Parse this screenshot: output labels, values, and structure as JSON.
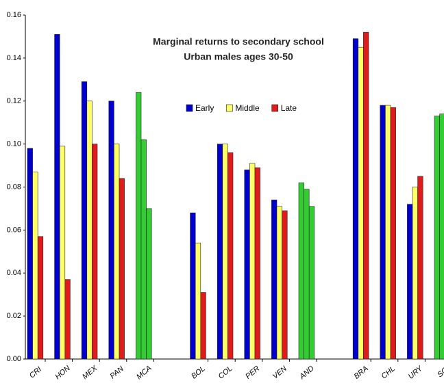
{
  "chart_data": {
    "type": "bar",
    "title": "Marginal returns to secondary school",
    "subtitle": "Urban males ages 30-50",
    "categories": [
      "CRI",
      "HON",
      "MEX",
      "PAN",
      "MCA",
      null,
      "BOL",
      "COL",
      "PER",
      "VEN",
      "AND",
      null,
      "BRA",
      "CHL",
      "URY",
      "SC"
    ],
    "series": [
      {
        "name": "Early",
        "color": "#0000cc",
        "values": [
          0.098,
          0.151,
          0.129,
          0.12,
          0.124,
          null,
          0.068,
          0.1,
          0.088,
          0.074,
          0.082,
          null,
          0.149,
          0.118,
          0.072,
          0.113
        ]
      },
      {
        "name": "Middle",
        "color": "#ffff66",
        "values": [
          0.087,
          0.099,
          0.12,
          0.1,
          0.102,
          null,
          0.054,
          0.1,
          0.091,
          0.071,
          0.079,
          null,
          0.145,
          0.118,
          0.08,
          0.114
        ]
      },
      {
        "name": "Late",
        "color": "#e01b1b",
        "values": [
          0.057,
          0.037,
          0.1,
          0.084,
          0.07,
          null,
          0.031,
          0.096,
          0.089,
          0.069,
          0.071,
          null,
          0.152,
          0.117,
          0.085,
          null
        ]
      }
    ],
    "highlight_categories": [
      "MCA",
      "AND",
      "SC"
    ],
    "highlight_color": "#33cc33",
    "ylim": [
      0,
      0.16
    ],
    "yticks": [
      {
        "value": 0,
        "label": "0.00"
      },
      0.02,
      0.04,
      0.06,
      0.08,
      {
        "value": 0.1,
        "label": "0.10"
      },
      0.12,
      0.14,
      0.16
    ],
    "grid": false,
    "legend": "top"
  }
}
